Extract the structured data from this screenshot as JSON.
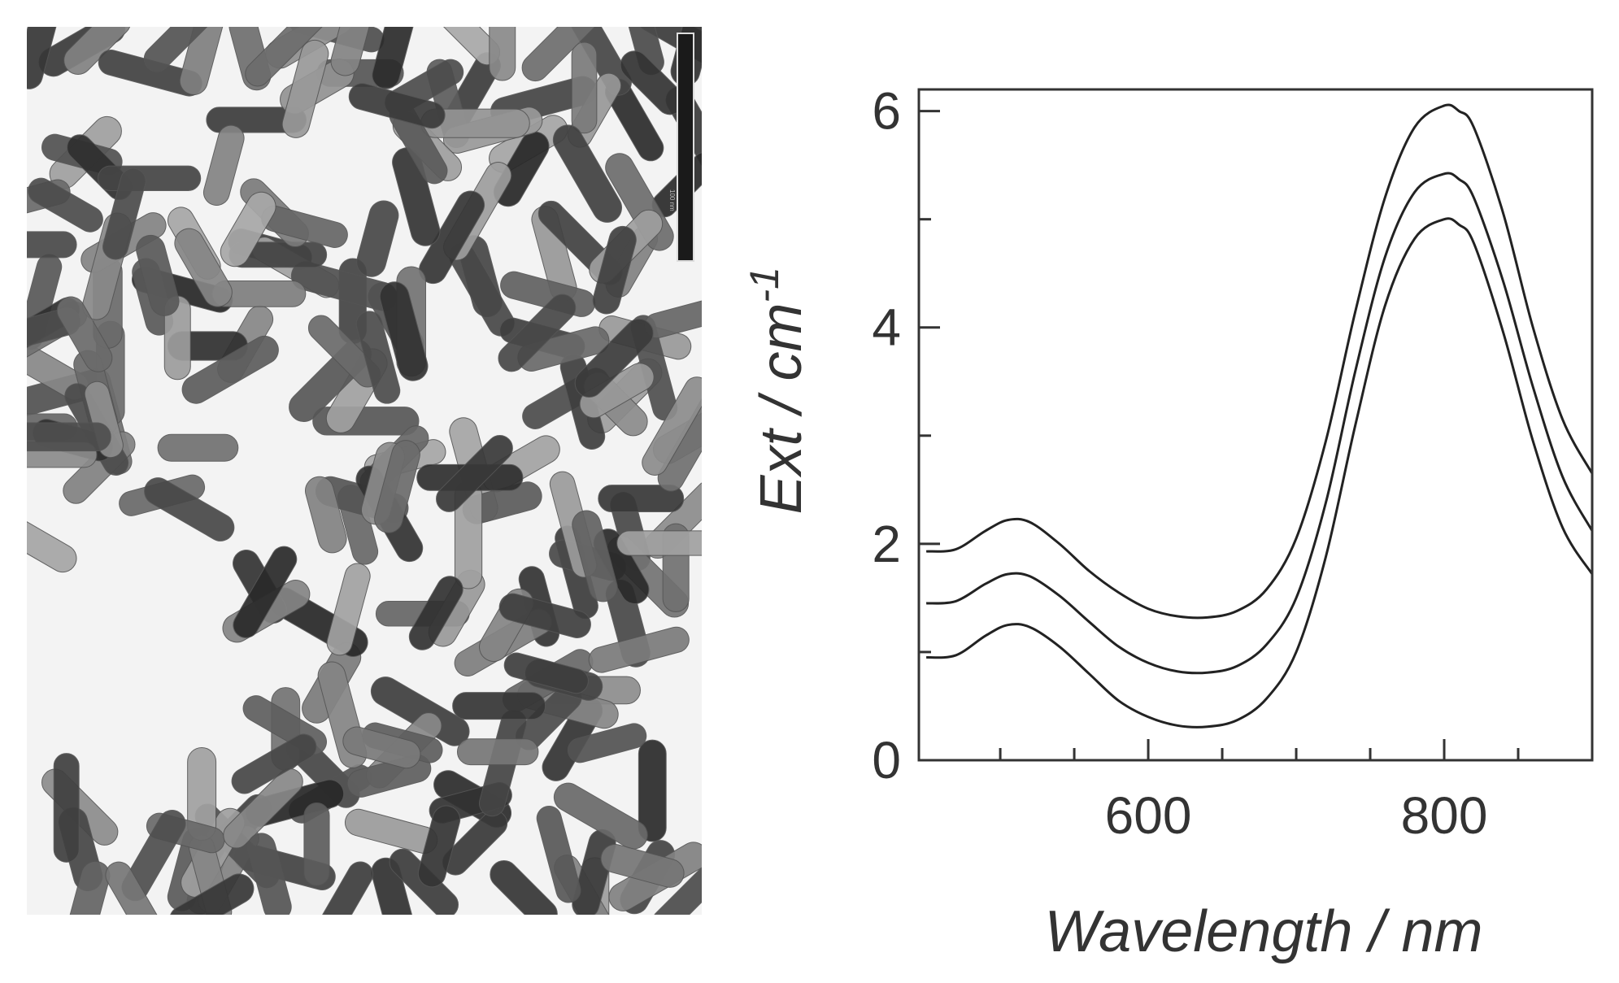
{
  "figure": {
    "micrograph": {
      "description_name": "gold-nanorod-tem-micrograph",
      "scale_bar_label": "100 nm"
    }
  },
  "chart_data": {
    "type": "line",
    "title": "",
    "xlabel": "Wavelength / nm",
    "ylabel": "Ext / cm",
    "ylabel_superscript": "-1",
    "xlim": [
      445,
      900
    ],
    "ylim": [
      0,
      6.2
    ],
    "x_ticks": [
      600,
      800
    ],
    "y_ticks": [
      0,
      2,
      4,
      6
    ],
    "x_minor_ticks": [
      500,
      550,
      650,
      700,
      750,
      850
    ],
    "y_minor_ticks": [
      1,
      3,
      5
    ],
    "grid": false,
    "legend": "none",
    "line_color": "#222222",
    "series": [
      {
        "x": [
          450,
          470,
          490,
          505,
          520,
          540,
          560,
          580,
          600,
          620,
          640,
          660,
          680,
          700,
          720,
          740,
          760,
          780,
          800,
          810,
          820,
          840,
          860,
          880,
          900
        ],
        "values": [
          1.93,
          1.95,
          2.12,
          2.22,
          2.2,
          2.0,
          1.75,
          1.55,
          1.4,
          1.33,
          1.32,
          1.38,
          1.58,
          2.05,
          2.95,
          4.15,
          5.2,
          5.85,
          6.05,
          6.0,
          5.85,
          5.05,
          4.0,
          3.15,
          2.65
        ]
      },
      {
        "x": [
          450,
          470,
          490,
          505,
          520,
          540,
          560,
          580,
          600,
          620,
          640,
          660,
          680,
          700,
          720,
          740,
          760,
          780,
          800,
          810,
          820,
          840,
          860,
          880,
          900
        ],
        "values": [
          1.45,
          1.47,
          1.63,
          1.72,
          1.7,
          1.52,
          1.28,
          1.05,
          0.9,
          0.82,
          0.81,
          0.87,
          1.07,
          1.5,
          2.38,
          3.6,
          4.65,
          5.25,
          5.42,
          5.37,
          5.2,
          4.42,
          3.45,
          2.62,
          2.12
        ]
      },
      {
        "x": [
          450,
          470,
          490,
          505,
          520,
          540,
          560,
          580,
          600,
          620,
          640,
          660,
          680,
          700,
          720,
          740,
          760,
          780,
          800,
          810,
          820,
          840,
          860,
          880,
          900
        ],
        "values": [
          0.95,
          0.97,
          1.15,
          1.25,
          1.23,
          1.05,
          0.8,
          0.55,
          0.4,
          0.32,
          0.31,
          0.37,
          0.57,
          1.0,
          1.88,
          3.1,
          4.2,
          4.82,
          5.0,
          4.95,
          4.78,
          3.95,
          2.95,
          2.15,
          1.72
        ]
      }
    ]
  }
}
